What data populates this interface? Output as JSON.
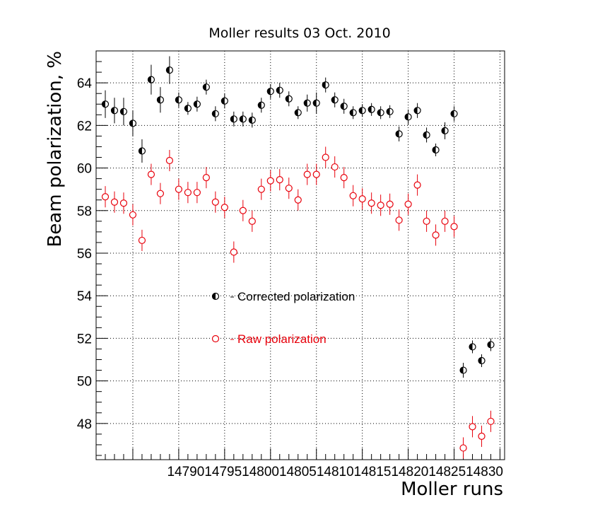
{
  "chart_data": {
    "type": "scatter",
    "title": "Moller results 03 Oct. 2010",
    "xlabel": "Moller runs",
    "ylabel": "Beam polarization,  %",
    "xlim": [
      14786,
      14830.5
    ],
    "ylim": [
      46.3,
      65.5
    ],
    "x_ticks": [
      14790,
      14795,
      14800,
      14805,
      14810,
      14815,
      14820,
      14825,
      14830
    ],
    "y_ticks": [
      48,
      50,
      52,
      54,
      56,
      58,
      60,
      62,
      64
    ],
    "grid": true,
    "legend_placement": "center-left",
    "tick_label_text": "147901479514800148051481014815148201482514830",
    "series": [
      {
        "name": "Corrected polarization",
        "color": "#000000",
        "marker": "half-filled-circle",
        "x": [
          14787,
          14788,
          14789,
          14790,
          14791,
          14792,
          14793,
          14794,
          14795,
          14796,
          14797,
          14798,
          14799,
          14800,
          14801,
          14802,
          14803,
          14804,
          14805,
          14806,
          14807,
          14808,
          14809,
          14810,
          14811,
          14812,
          14813,
          14814,
          14815,
          14816,
          14817,
          14818,
          14819,
          14820,
          14821,
          14822,
          14823,
          14824,
          14825,
          14826,
          14827,
          14828,
          14829
        ],
        "y": [
          63.0,
          62.7,
          62.65,
          62.1,
          60.8,
          64.15,
          63.2,
          64.6,
          63.2,
          62.8,
          63.0,
          63.8,
          62.55,
          63.15,
          62.3,
          62.3,
          62.25,
          62.95,
          63.6,
          63.65,
          63.25,
          62.6,
          63.05,
          63.05,
          63.9,
          63.2,
          62.9,
          62.6,
          62.7,
          62.75,
          62.6,
          62.65,
          61.6,
          62.4,
          62.7,
          61.55,
          60.85,
          61.75,
          62.55,
          50.5,
          51.6,
          50.95,
          51.7
        ],
        "err": [
          0.65,
          0.6,
          0.65,
          0.6,
          0.55,
          0.7,
          0.6,
          0.65,
          0.35,
          0.3,
          0.35,
          0.35,
          0.35,
          0.35,
          0.35,
          0.35,
          0.35,
          0.35,
          0.35,
          0.35,
          0.35,
          0.3,
          0.4,
          0.5,
          0.35,
          0.35,
          0.35,
          0.3,
          0.3,
          0.3,
          0.3,
          0.3,
          0.35,
          0.35,
          0.35,
          0.35,
          0.3,
          0.4,
          0.35,
          0.35,
          0.3,
          0.3,
          0.3
        ]
      },
      {
        "name": "Raw polarization",
        "color": "#e8000b",
        "marker": "open-circle",
        "x": [
          14787,
          14788,
          14789,
          14790,
          14791,
          14792,
          14793,
          14794,
          14795,
          14796,
          14797,
          14798,
          14799,
          14800,
          14801,
          14802,
          14803,
          14804,
          14805,
          14806,
          14807,
          14808,
          14809,
          14810,
          14811,
          14812,
          14813,
          14814,
          14815,
          14816,
          14817,
          14818,
          14819,
          14820,
          14821,
          14822,
          14823,
          14824,
          14825,
          14826,
          14827,
          14828,
          14829
        ],
        "y": [
          58.65,
          58.4,
          58.35,
          57.8,
          56.6,
          59.7,
          58.8,
          60.35,
          59.0,
          58.85,
          58.85,
          59.55,
          58.4,
          58.15,
          56.05,
          58.0,
          57.5,
          59.0,
          59.4,
          59.45,
          59.05,
          58.5,
          59.7,
          59.7,
          60.5,
          60.05,
          59.55,
          58.7,
          58.55,
          58.35,
          58.25,
          58.3,
          57.55,
          58.3,
          59.2,
          57.5,
          56.85,
          57.5,
          57.25,
          46.85,
          47.85,
          47.4,
          48.1
        ]
      }
    ]
  }
}
